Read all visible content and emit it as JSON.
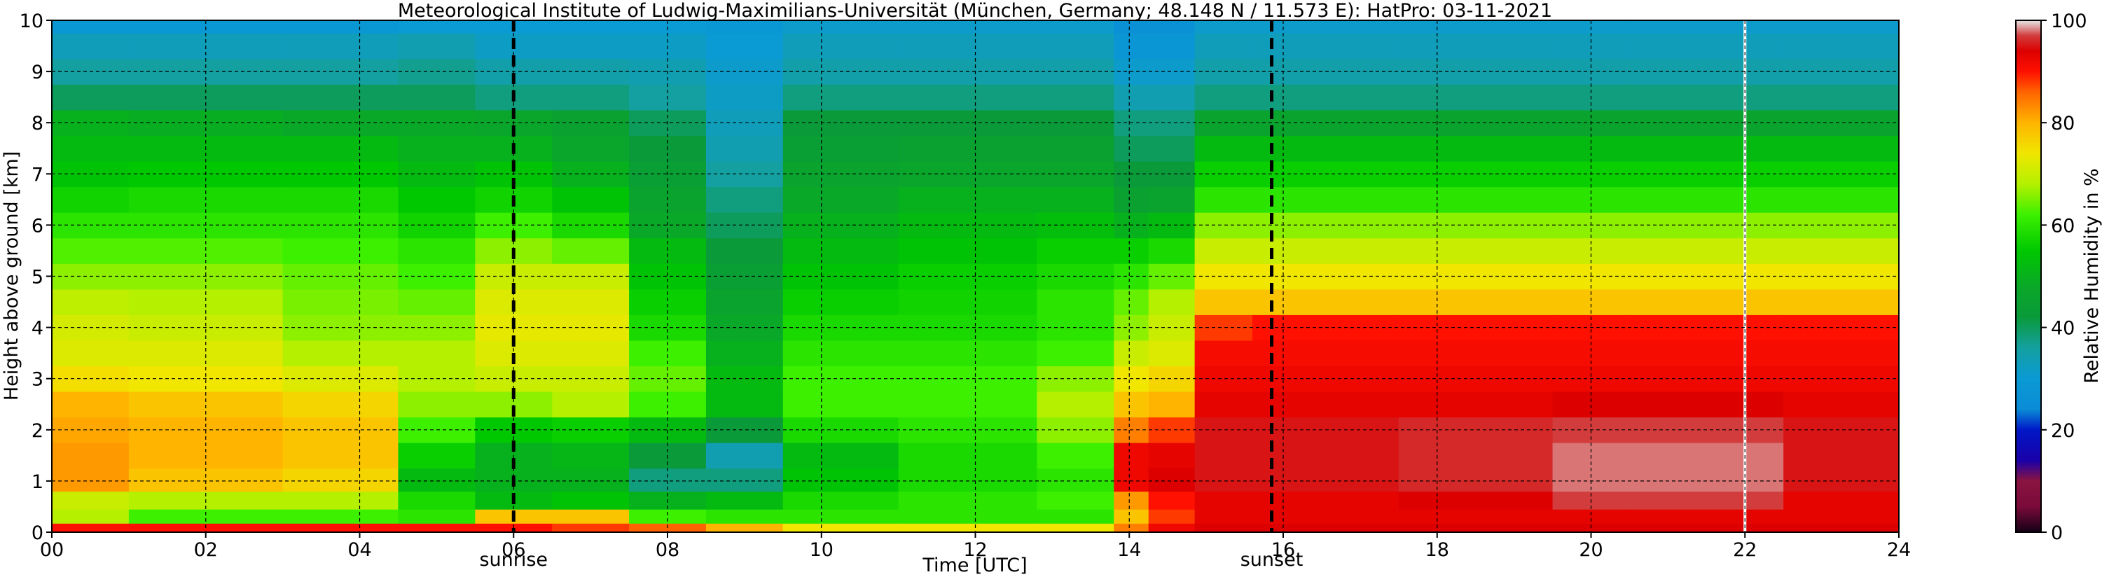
{
  "chart_data": {
    "type": "heatmap",
    "title": "Meteorological Institute of Ludwig-Maximilians-Universität (München, Germany; 48.148 N / 11.573 E):    HatPro: 03-11-2021",
    "xlabel": "Time [UTC]",
    "ylabel": "Height above ground [km]",
    "xlim": [
      0,
      24
    ],
    "ylim": [
      0,
      10
    ],
    "x_ticks": [
      {
        "value": 0,
        "label": "00"
      },
      {
        "value": 2,
        "label": "02"
      },
      {
        "value": 4,
        "label": "04"
      },
      {
        "value": 6,
        "label": "06"
      },
      {
        "value": 8,
        "label": "08"
      },
      {
        "value": 10,
        "label": "10"
      },
      {
        "value": 12,
        "label": "12"
      },
      {
        "value": 14,
        "label": "14"
      },
      {
        "value": 16,
        "label": "16"
      },
      {
        "value": 18,
        "label": "18"
      },
      {
        "value": 20,
        "label": "20"
      },
      {
        "value": 22,
        "label": "22"
      },
      {
        "value": 24,
        "label": "24"
      }
    ],
    "y_ticks": [
      {
        "value": 0,
        "label": "0"
      },
      {
        "value": 1,
        "label": "1"
      },
      {
        "value": 2,
        "label": "2"
      },
      {
        "value": 3,
        "label": "3"
      },
      {
        "value": 4,
        "label": "4"
      },
      {
        "value": 5,
        "label": "5"
      },
      {
        "value": 6,
        "label": "6"
      },
      {
        "value": 7,
        "label": "7"
      },
      {
        "value": 8,
        "label": "8"
      },
      {
        "value": 9,
        "label": "9"
      },
      {
        "value": 10,
        "label": "10"
      }
    ],
    "grid": true,
    "events": [
      {
        "label": "sunrise",
        "time": 6.0
      },
      {
        "label": "sunset",
        "time": 15.85
      }
    ],
    "data_gap_time": 22.0,
    "colorbar": {
      "label": "Relative Humidity in %",
      "min": 0,
      "max": 100,
      "ticks": [
        0,
        20,
        40,
        60,
        80,
        100
      ],
      "stops": [
        {
          "value": 0,
          "color": "#140016"
        },
        {
          "value": 5,
          "color": "#7a0a3a"
        },
        {
          "value": 10,
          "color": "#8a1440"
        },
        {
          "value": 14,
          "color": "#1a00a8"
        },
        {
          "value": 20,
          "color": "#0018c8"
        },
        {
          "value": 24,
          "color": "#0a8cd6"
        },
        {
          "value": 30,
          "color": "#0a9ad4"
        },
        {
          "value": 36,
          "color": "#14a0a0"
        },
        {
          "value": 42,
          "color": "#0a9a3a"
        },
        {
          "value": 48,
          "color": "#0aa828"
        },
        {
          "value": 55,
          "color": "#00c800"
        },
        {
          "value": 62,
          "color": "#3cf000"
        },
        {
          "value": 68,
          "color": "#b4f000"
        },
        {
          "value": 74,
          "color": "#f0e600"
        },
        {
          "value": 80,
          "color": "#ffb400"
        },
        {
          "value": 86,
          "color": "#ff6400"
        },
        {
          "value": 90,
          "color": "#ff1000"
        },
        {
          "value": 94,
          "color": "#dc0000"
        },
        {
          "value": 97,
          "color": "#d23c3c"
        },
        {
          "value": 100,
          "color": "#e8e8e8"
        }
      ]
    },
    "height_levels_km": [
      0.05,
      0.3,
      0.6,
      1.0,
      1.5,
      2.0,
      2.5,
      3.0,
      3.5,
      4.0,
      4.5,
      5.0,
      5.5,
      6.0,
      6.5,
      7.0,
      7.5,
      8.0,
      8.5,
      9.0,
      9.5,
      10.0
    ],
    "rh_profiles": [
      {
        "time": 0.0,
        "rh": [
          90,
          68,
          70,
          82,
          82,
          81,
          80,
          75,
          72,
          71,
          69,
          66,
          63,
          60,
          57,
          54,
          52,
          50,
          40,
          36,
          33,
          29
        ]
      },
      {
        "time": 2.0,
        "rh": [
          90,
          62,
          68,
          78,
          80,
          80,
          78,
          74,
          72,
          70,
          68,
          66,
          63,
          60,
          58,
          55,
          52,
          49,
          40,
          36,
          33,
          29
        ]
      },
      {
        "time": 4.0,
        "rh": [
          90,
          62,
          68,
          76,
          78,
          78,
          76,
          72,
          68,
          66,
          65,
          64,
          62,
          60,
          58,
          55,
          52,
          48,
          40,
          36,
          33,
          29
        ]
      },
      {
        "time": 5.0,
        "rh": [
          90,
          60,
          58,
          52,
          56,
          62,
          66,
          68,
          68,
          66,
          64,
          62,
          60,
          57,
          55,
          52,
          50,
          48,
          40,
          37,
          34,
          30
        ]
      },
      {
        "time": 6.0,
        "rh": [
          90,
          78,
          52,
          50,
          50,
          55,
          66,
          70,
          72,
          73,
          72,
          70,
          66,
          62,
          57,
          54,
          50,
          47,
          38,
          35,
          32,
          30
        ]
      },
      {
        "time": 7.0,
        "rh": [
          88,
          78,
          54,
          50,
          51,
          56,
          68,
          70,
          72,
          73,
          72,
          70,
          64,
          58,
          54,
          50,
          47,
          45,
          38,
          35,
          32,
          30
        ]
      },
      {
        "time": 8.0,
        "rh": [
          86,
          62,
          50,
          38,
          42,
          52,
          62,
          64,
          62,
          58,
          56,
          54,
          52,
          48,
          46,
          44,
          42,
          40,
          36,
          34,
          32,
          30
        ]
      },
      {
        "time": 9.0,
        "rh": [
          80,
          60,
          52,
          38,
          34,
          42,
          52,
          52,
          50,
          48,
          46,
          44,
          42,
          40,
          38,
          36,
          34,
          33,
          32,
          31,
          30,
          29
        ]
      },
      {
        "time": 10.0,
        "rh": [
          74,
          60,
          58,
          54,
          52,
          58,
          62,
          62,
          60,
          58,
          56,
          54,
          52,
          50,
          48,
          46,
          44,
          42,
          38,
          35,
          33,
          31
        ]
      },
      {
        "time": 12.0,
        "rh": [
          74,
          60,
          60,
          58,
          58,
          60,
          62,
          62,
          60,
          58,
          57,
          56,
          54,
          52,
          50,
          47,
          45,
          42,
          38,
          35,
          33,
          31
        ]
      },
      {
        "time": 13.6,
        "rh": [
          74,
          60,
          62,
          60,
          62,
          66,
          68,
          66,
          62,
          60,
          60,
          58,
          56,
          53,
          50,
          47,
          45,
          42,
          38,
          35,
          33,
          31
        ]
      },
      {
        "time": 14.0,
        "rh": [
          84,
          78,
          82,
          92,
          92,
          84,
          78,
          74,
          70,
          66,
          64,
          60,
          56,
          50,
          45,
          42,
          40,
          38,
          34,
          31,
          28,
          26
        ]
      },
      {
        "time": 14.5,
        "rh": [
          92,
          88,
          90,
          94,
          93,
          88,
          80,
          76,
          72,
          70,
          68,
          64,
          58,
          52,
          46,
          42,
          40,
          38,
          34,
          31,
          28,
          26
        ]
      },
      {
        "time": 15.2,
        "rh": [
          94,
          93,
          93,
          95,
          95,
          95,
          93,
          92,
          91,
          88,
          78,
          74,
          70,
          66,
          60,
          56,
          52,
          46,
          38,
          35,
          33,
          31
        ]
      },
      {
        "time": 16.0,
        "rh": [
          94,
          93,
          93,
          95,
          95,
          95,
          93,
          92,
          91,
          90,
          78,
          74,
          70,
          66,
          60,
          56,
          52,
          46,
          38,
          35,
          33,
          31
        ]
      },
      {
        "time": 19.0,
        "rh": [
          94,
          93,
          94,
          96,
          96,
          96,
          93,
          92,
          91,
          90,
          78,
          74,
          70,
          66,
          60,
          56,
          52,
          46,
          38,
          35,
          33,
          31
        ]
      },
      {
        "time": 20.0,
        "rh": [
          94,
          93,
          97,
          98,
          98,
          97,
          94,
          92,
          91,
          90,
          78,
          74,
          70,
          66,
          60,
          56,
          52,
          46,
          38,
          35,
          33,
          31
        ]
      },
      {
        "time": 21.0,
        "rh": [
          94,
          93,
          97,
          98,
          98,
          97,
          94,
          92,
          91,
          90,
          78,
          74,
          70,
          66,
          60,
          56,
          52,
          46,
          38,
          35,
          33,
          31
        ]
      },
      {
        "time": 24.0,
        "rh": [
          94,
          93,
          93,
          95,
          95,
          95,
          93,
          92,
          91,
          90,
          78,
          74,
          70,
          66,
          60,
          56,
          52,
          46,
          38,
          35,
          33,
          31
        ]
      }
    ]
  }
}
